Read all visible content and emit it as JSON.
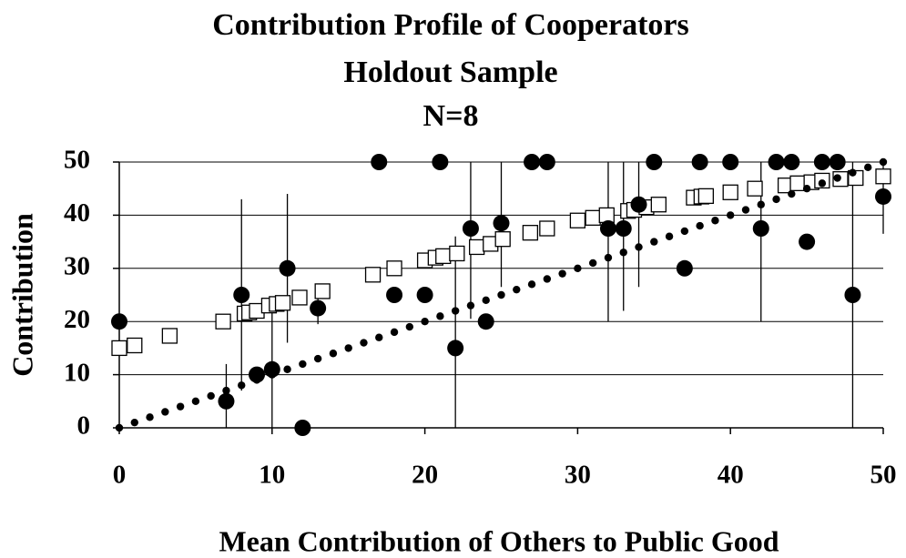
{
  "chart_data": {
    "type": "scatter",
    "title": [
      "Contribution Profile of Cooperators",
      "Holdout Sample",
      "N=8"
    ],
    "xlabel": "Mean Contribution of Others to Public Good",
    "ylabel": "Contribution",
    "xlim": [
      0,
      50
    ],
    "ylim": [
      0,
      50
    ],
    "xticks": [
      0,
      10,
      20,
      30,
      40,
      50
    ],
    "yticks": [
      0,
      10,
      20,
      30,
      40,
      50
    ],
    "grid": true,
    "series": [
      {
        "marker": "open-square",
        "color": "#000000",
        "x": [
          0,
          1,
          3.3,
          6.8,
          8.2,
          8.5,
          9,
          9.8,
          10.3,
          10.7,
          11.8,
          13.3,
          16.6,
          18,
          20,
          20.7,
          21.2,
          22.1,
          23.4,
          24.3,
          25.1,
          26.9,
          28,
          30,
          31,
          31.9,
          33.3,
          33.7,
          34.5,
          35.3,
          37.6,
          38.1,
          38.4,
          40,
          41.6,
          43.6,
          44.4,
          45.3,
          46,
          47.2,
          48.2,
          50
        ],
        "values": [
          15,
          15.5,
          17.3,
          20,
          21.5,
          21.7,
          22,
          23,
          23.3,
          23.5,
          24.5,
          25.7,
          28.8,
          30,
          31.5,
          32,
          32.3,
          32.8,
          34,
          34.6,
          35.5,
          36.7,
          37.5,
          39,
          39.5,
          40,
          40.8,
          41,
          41.5,
          42,
          43.3,
          43.5,
          43.6,
          44.3,
          45,
          45.6,
          46,
          46.2,
          46.5,
          46.8,
          47,
          47.3
        ]
      },
      {
        "marker": "dot",
        "color": "#000000",
        "x": [
          0,
          1,
          2,
          3,
          4,
          5,
          6,
          7,
          8,
          9,
          10,
          11,
          12,
          13,
          14,
          15,
          16,
          17,
          18,
          19,
          20,
          21,
          22,
          23,
          24,
          25,
          26,
          27,
          28,
          29,
          30,
          31,
          32,
          33,
          34,
          35,
          36,
          37,
          38,
          39,
          40,
          41,
          42,
          43,
          44,
          45,
          46,
          47,
          48,
          49,
          50
        ],
        "values": [
          0,
          1,
          2,
          3,
          4,
          5,
          6,
          7,
          8,
          9,
          10,
          11,
          12,
          13,
          14,
          15,
          16,
          17,
          18,
          19,
          20,
          21,
          22,
          23,
          24,
          25,
          26,
          27,
          28,
          29,
          30,
          31,
          32,
          33,
          34,
          35,
          36,
          37,
          38,
          39,
          40,
          41,
          42,
          43,
          44,
          45,
          46,
          47,
          48,
          49,
          50
        ]
      },
      {
        "marker": "filled-circle",
        "color": "#000000",
        "x": [
          0,
          7,
          8,
          9,
          10,
          11,
          12,
          13,
          17,
          18,
          20,
          21,
          22,
          23,
          24,
          25,
          27,
          28,
          32,
          33,
          34,
          35,
          37,
          38,
          40,
          42,
          43,
          44,
          45,
          46,
          47,
          48,
          50
        ],
        "values": [
          20,
          5,
          25,
          10,
          11,
          30,
          0,
          22.5,
          50,
          25,
          25,
          50,
          15,
          37.5,
          20,
          38.5,
          50,
          50,
          37.5,
          37.5,
          42,
          50,
          30,
          50,
          50,
          37.5,
          50,
          50,
          35,
          50,
          50,
          25,
          43.5
        ],
        "err": [
          0,
          7,
          18,
          0,
          11,
          14,
          0,
          3,
          0,
          0,
          0,
          0,
          21,
          17,
          0,
          12,
          0,
          0,
          17.5,
          15.5,
          15.5,
          0,
          0,
          0,
          0,
          17.5,
          0,
          0,
          0,
          0,
          0,
          25,
          7
        ]
      }
    ]
  }
}
